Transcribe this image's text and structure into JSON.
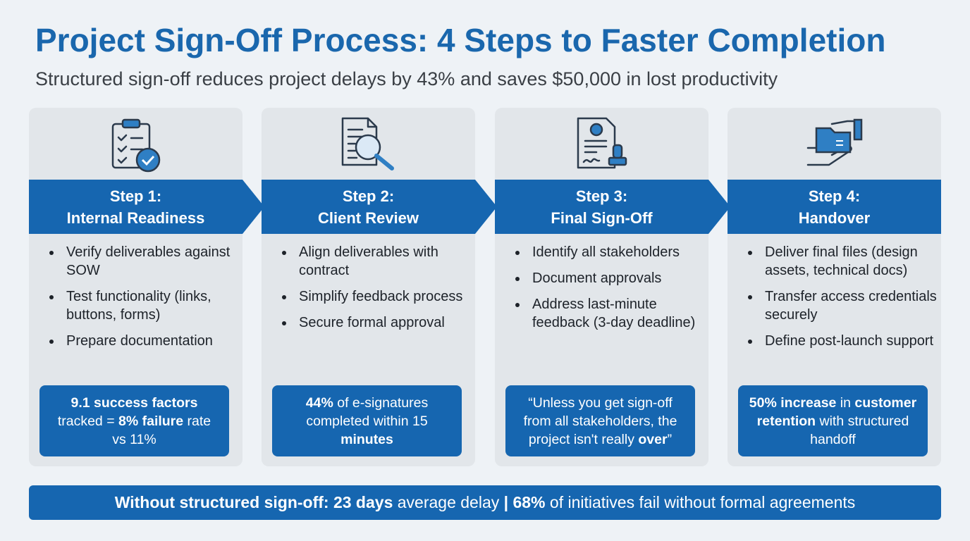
{
  "header": {
    "title": "Project Sign-Off Process: 4 Steps to Faster Completion",
    "subtitle": "Structured sign-off reduces project delays by 43% and saves $50,000 in lost productivity"
  },
  "steps": [
    {
      "step": "Step 1:",
      "title": "Internal Readiness",
      "bullets": [
        "Verify deliverables against SOW",
        "Test functionality (links, buttons, forms)",
        "Prepare documentation"
      ],
      "callout": [
        {
          "text": "9.1 success factors",
          "bold": true
        },
        {
          "text": " tracked = ",
          "bold": false
        },
        {
          "text": "8% failure",
          "bold": true
        },
        {
          "text": " rate vs 11%",
          "bold": false
        }
      ]
    },
    {
      "step": "Step 2:",
      "title": "Client Review",
      "bullets": [
        "Align deliverables with contract",
        "Simplify feedback process",
        "Secure formal approval"
      ],
      "callout": [
        {
          "text": "44%",
          "bold": true
        },
        {
          "text": " of e-signatures completed within 15 ",
          "bold": false
        },
        {
          "text": "minutes",
          "bold": true
        }
      ]
    },
    {
      "step": "Step 3:",
      "title": "Final Sign-Off",
      "bullets": [
        "Identify all stakeholders",
        "Document approvals",
        "Address last-minute feedback (3-day deadline)"
      ],
      "callout": [
        {
          "text": "“Unless you get sign-off from all stakeholders, the project isn't really ",
          "bold": false
        },
        {
          "text": "over",
          "bold": true
        },
        {
          "text": "”",
          "bold": false
        }
      ]
    },
    {
      "step": "Step 4:",
      "title": "Handover",
      "bullets": [
        "Deliver final files (design assets, technical docs)",
        "Transfer access credentials securely",
        "Define post-launch support"
      ],
      "callout": [
        {
          "text": "50% increase",
          "bold": true
        },
        {
          "text": " in ",
          "bold": false
        },
        {
          "text": "customer retention",
          "bold": true
        },
        {
          "text": " with structured handoff",
          "bold": false
        }
      ]
    }
  ],
  "footer": [
    {
      "text": "Without structured sign-off: 23 days",
      "bold": true
    },
    {
      "text": " average delay ",
      "bold": false
    },
    {
      "text": "|",
      "bold": true
    },
    {
      "text": " ",
      "bold": false
    },
    {
      "text": "68%",
      "bold": true
    },
    {
      "text": " of initiatives fail without formal agreements",
      "bold": false
    }
  ]
}
